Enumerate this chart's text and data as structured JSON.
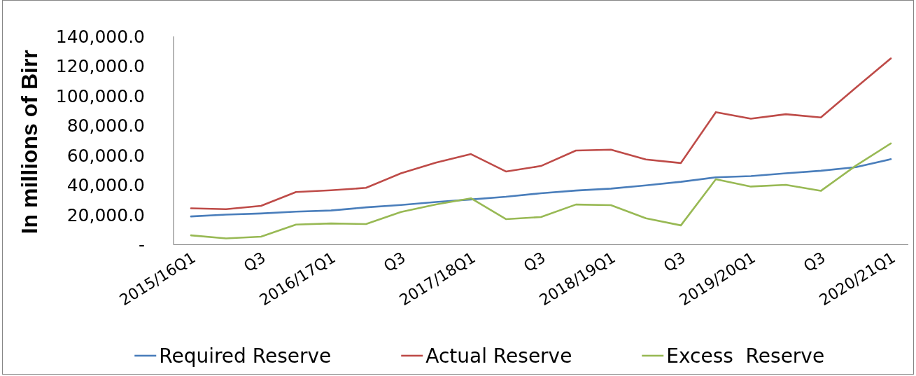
{
  "chart_data": {
    "type": "line",
    "ylabel": "In millions of Birr",
    "categories": [
      "2015/16Q1",
      null,
      "Q3",
      null,
      "2016/17Q1",
      null,
      "Q3",
      null,
      "2017/18Q1",
      null,
      "Q3",
      null,
      "2018/19Q1",
      null,
      "Q3",
      null,
      "2019/20Q1",
      null,
      "Q3",
      null,
      "2020/21Q1"
    ],
    "series": [
      {
        "name": "Required Reserve",
        "color": "#4a7ebb",
        "values": [
          19000,
          20200,
          21000,
          22200,
          23000,
          25100,
          26700,
          28700,
          30400,
          32200,
          34600,
          36400,
          37700,
          39900,
          42300,
          45300,
          46100,
          48000,
          49700,
          52100,
          57500
        ]
      },
      {
        "name": "Actual Reserve",
        "color": "#be4b48",
        "values": [
          24500,
          23900,
          26100,
          35400,
          36600,
          38200,
          48000,
          55200,
          60900,
          49200,
          52900,
          63300,
          63900,
          57300,
          54900,
          89100,
          84700,
          87700,
          85500,
          105500,
          125200
        ]
      },
      {
        "name": "Excess  Reserve",
        "color": "#98b954",
        "values": [
          6300,
          4200,
          5400,
          13500,
          14300,
          13900,
          22000,
          27100,
          31200,
          17200,
          18600,
          27000,
          26600,
          17800,
          13000,
          44000,
          39100,
          40200,
          36200,
          53100,
          68100
        ]
      }
    ],
    "ylim": [
      0,
      140000
    ],
    "yticks": [
      {
        "value": 0,
        "label": "-"
      },
      {
        "value": 20000,
        "label": "20,000.0"
      },
      {
        "value": 40000,
        "label": "40,000.0"
      },
      {
        "value": 60000,
        "label": "60,000.0"
      },
      {
        "value": 80000,
        "label": "80,000.0"
      },
      {
        "value": 100000,
        "label": "100,000.0"
      },
      {
        "value": 120000,
        "label": "120,000.0"
      },
      {
        "value": 140000,
        "label": "140,000.0"
      }
    ],
    "legend": "bottom"
  }
}
